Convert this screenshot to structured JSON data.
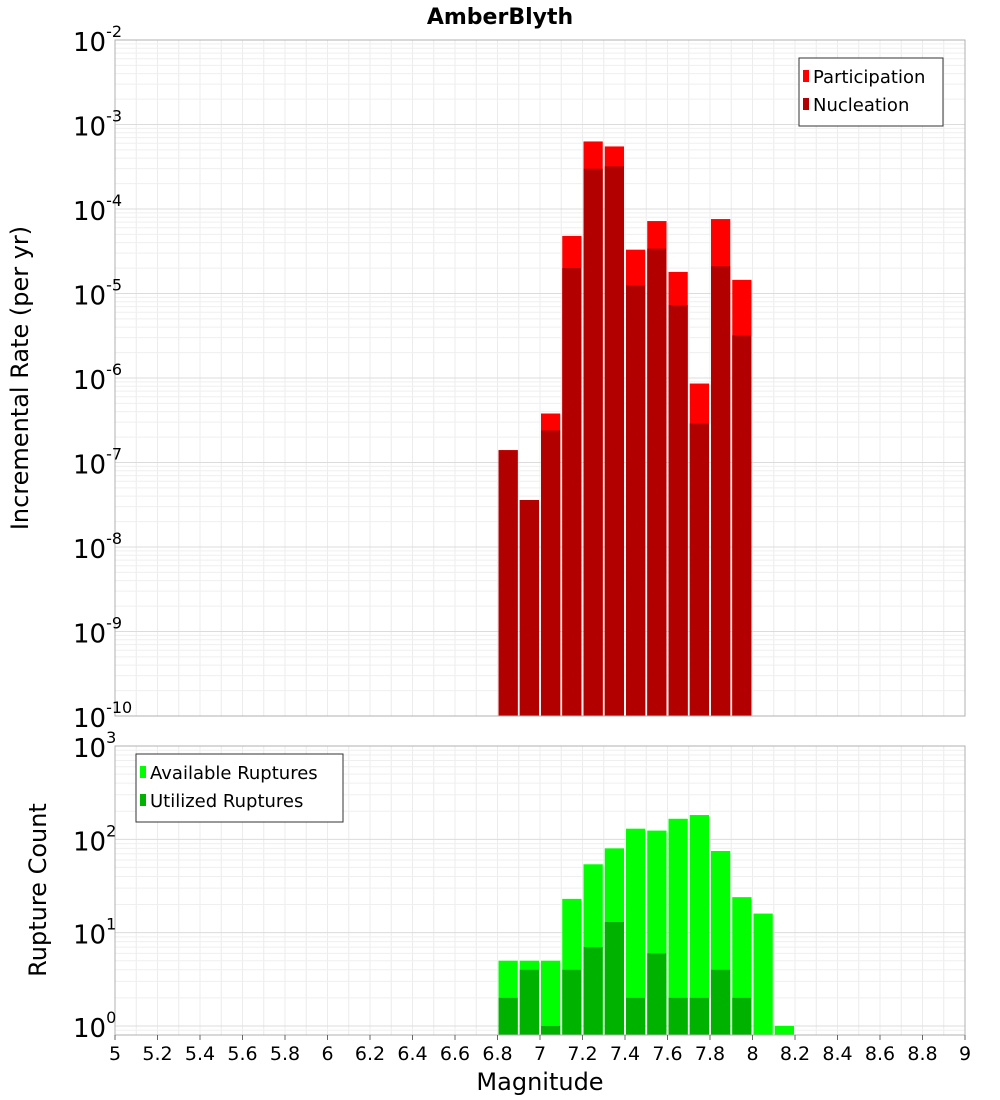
{
  "title": "AmberBlyth",
  "xlabel": "Magnitude",
  "chart_data": [
    {
      "type": "bar",
      "title": "AmberBlyth",
      "xlabel": "Magnitude",
      "ylabel": "Incremental Rate (per yr)",
      "yscale": "log",
      "xlim": [
        5,
        9
      ],
      "ylim": [
        1e-10,
        0.01
      ],
      "grid": true,
      "legend_position": "top-right",
      "x": [
        6.85,
        6.95,
        7.05,
        7.15,
        7.25,
        7.35,
        7.45,
        7.55,
        7.65,
        7.75,
        7.85,
        7.95
      ],
      "series": [
        {
          "name": "Participation",
          "color": "#ff0000",
          "values": [
            1.4e-07,
            3.6e-08,
            3.8e-07,
            4.8e-05,
            0.00063,
            0.00055,
            3.3e-05,
            7.2e-05,
            1.8e-05,
            8.6e-07,
            7.6e-05,
            1.45e-05
          ]
        },
        {
          "name": "Nucleation",
          "color": "#b20000",
          "values": [
            1.4e-07,
            3.6e-08,
            2.4e-07,
            2e-05,
            0.0003,
            0.00032,
            1.25e-05,
            3.4e-05,
            7.3e-06,
            2.9e-07,
            2.1e-05,
            3.2e-06
          ]
        }
      ]
    },
    {
      "type": "bar",
      "xlabel": "Magnitude",
      "ylabel": "Rupture Count",
      "yscale": "log",
      "xlim": [
        5,
        9
      ],
      "ylim": [
        0.8,
        1000
      ],
      "grid": true,
      "legend_position": "top-left",
      "x": [
        6.85,
        6.95,
        7.05,
        7.15,
        7.25,
        7.35,
        7.45,
        7.55,
        7.65,
        7.75,
        7.85,
        7.95,
        8.05,
        8.15
      ],
      "series": [
        {
          "name": "Available Ruptures",
          "color": "#00ff00",
          "values": [
            5,
            5,
            5,
            23,
            54,
            80,
            130,
            124,
            166,
            182,
            75,
            24,
            16,
            1
          ]
        },
        {
          "name": "Utilized Ruptures",
          "color": "#00b200",
          "values": [
            2,
            4,
            1,
            4,
            7,
            13,
            2,
            6,
            2,
            2,
            4,
            2,
            0,
            0
          ]
        }
      ]
    }
  ],
  "x_ticks": [
    "5",
    "5.2",
    "5.4",
    "5.6",
    "5.8",
    "6",
    "6.2",
    "6.4",
    "6.6",
    "6.8",
    "7",
    "7.2",
    "7.4",
    "7.6",
    "7.8",
    "8",
    "8.2",
    "8.4",
    "8.6",
    "8.8",
    "9"
  ]
}
